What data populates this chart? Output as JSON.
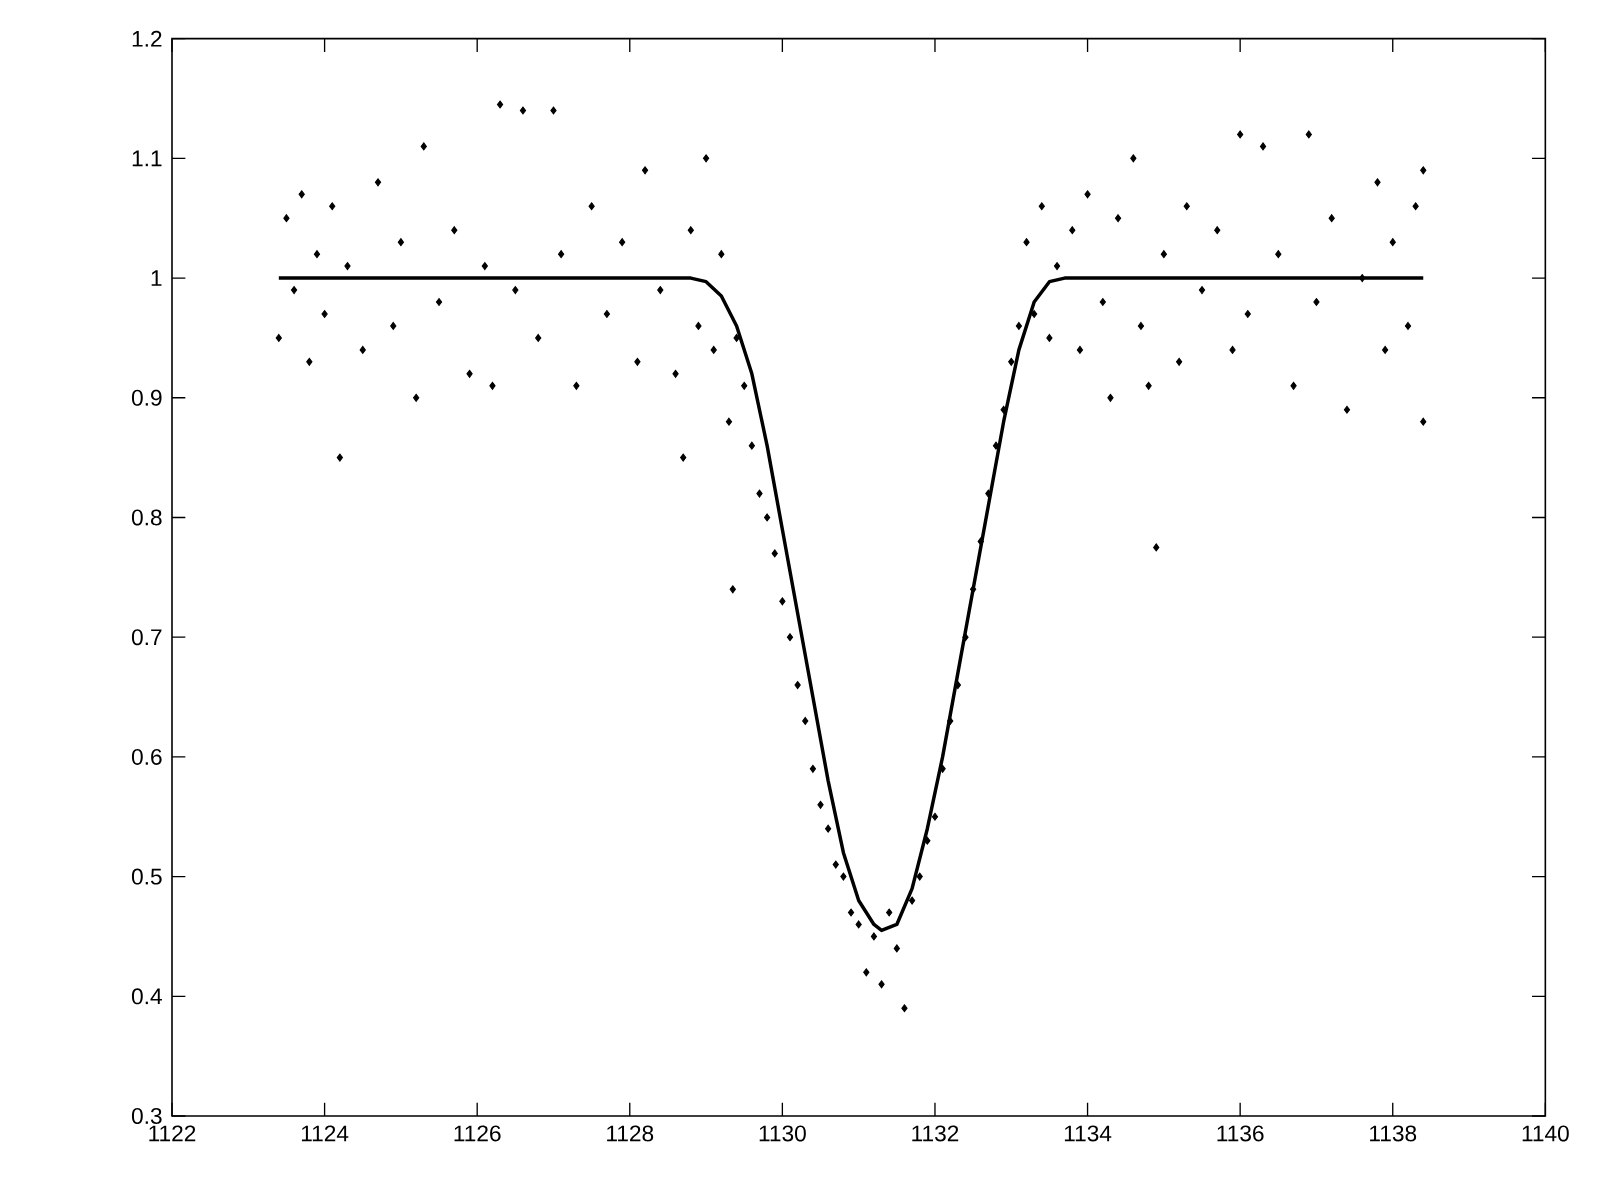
{
  "chart_data": {
    "type": "scatter",
    "xlim": [
      1122,
      1140
    ],
    "ylim": [
      0.3,
      1.2
    ],
    "xticks": [
      1122,
      1124,
      1126,
      1128,
      1130,
      1132,
      1134,
      1136,
      1138,
      1140
    ],
    "yticks": [
      0.3,
      0.4,
      0.5,
      0.6,
      0.7,
      0.8,
      0.9,
      1,
      1.1,
      1.2
    ],
    "series": [
      {
        "marker": "diamond",
        "color": "#000000",
        "x": [
          1123.4,
          1123.5,
          1123.6,
          1123.7,
          1123.8,
          1123.9,
          1124.0,
          1124.1,
          1124.2,
          1124.3,
          1124.5,
          1124.7,
          1124.9,
          1125.0,
          1125.2,
          1125.3,
          1125.5,
          1125.7,
          1125.9,
          1126.1,
          1126.2,
          1126.3,
          1126.5,
          1126.6,
          1126.8,
          1127.0,
          1127.1,
          1127.3,
          1127.5,
          1127.7,
          1127.9,
          1128.1,
          1128.2,
          1128.4,
          1128.6,
          1128.7,
          1128.8,
          1128.9,
          1129.0,
          1129.1,
          1129.2,
          1129.3,
          1129.35,
          1129.4,
          1129.5,
          1129.6,
          1129.7,
          1129.8,
          1129.9,
          1130.0,
          1130.1,
          1130.2,
          1130.3,
          1130.4,
          1130.5,
          1130.6,
          1130.7,
          1130.8,
          1130.9,
          1131.0,
          1131.1,
          1131.2,
          1131.3,
          1131.4,
          1131.5,
          1131.6,
          1131.7,
          1131.8,
          1131.9,
          1132.0,
          1132.1,
          1132.2,
          1132.3,
          1132.4,
          1132.5,
          1132.6,
          1132.7,
          1132.8,
          1132.9,
          1133.0,
          1133.1,
          1133.2,
          1133.3,
          1133.4,
          1133.5,
          1133.6,
          1133.8,
          1133.9,
          1134.0,
          1134.2,
          1134.3,
          1134.4,
          1134.6,
          1134.7,
          1134.8,
          1134.9,
          1135.0,
          1135.2,
          1135.3,
          1135.5,
          1135.7,
          1135.9,
          1136.0,
          1136.1,
          1136.3,
          1136.5,
          1136.7,
          1136.9,
          1137.0,
          1137.2,
          1137.4,
          1137.6,
          1137.8,
          1137.9,
          1138.0,
          1138.2,
          1138.3,
          1138.4,
          1138.4
        ],
        "values": [
          0.95,
          1.05,
          0.99,
          1.07,
          0.93,
          1.02,
          0.97,
          1.06,
          0.85,
          1.01,
          0.94,
          1.08,
          0.96,
          1.03,
          0.9,
          1.11,
          0.98,
          1.04,
          0.92,
          1.01,
          0.91,
          1.145,
          0.99,
          1.14,
          0.95,
          1.14,
          1.02,
          0.91,
          1.06,
          0.97,
          1.03,
          0.93,
          1.09,
          0.99,
          0.92,
          0.85,
          1.04,
          0.96,
          1.1,
          0.94,
          1.02,
          0.88,
          0.74,
          0.95,
          0.91,
          0.86,
          0.82,
          0.8,
          0.77,
          0.73,
          0.7,
          0.66,
          0.63,
          0.59,
          0.56,
          0.54,
          0.51,
          0.5,
          0.47,
          0.46,
          0.42,
          0.45,
          0.41,
          0.47,
          0.44,
          0.39,
          0.48,
          0.5,
          0.53,
          0.55,
          0.59,
          0.63,
          0.66,
          0.7,
          0.74,
          0.78,
          0.82,
          0.86,
          0.89,
          0.93,
          0.96,
          1.03,
          0.97,
          1.06,
          0.95,
          1.01,
          1.04,
          0.94,
          1.07,
          0.98,
          0.9,
          1.05,
          1.1,
          0.96,
          0.91,
          0.775,
          1.02,
          0.93,
          1.06,
          0.99,
          1.04,
          0.94,
          1.12,
          0.97,
          1.11,
          1.02,
          0.91,
          1.12,
          0.98,
          1.05,
          0.89,
          1.0,
          1.08,
          0.94,
          1.03,
          0.96,
          1.06,
          0.88,
          1.09
        ]
      },
      {
        "type": "line",
        "marker": "none",
        "line_style": "solid",
        "color": "#000000",
        "x": [
          1123.4,
          1128.8,
          1129.0,
          1129.2,
          1129.4,
          1129.6,
          1129.8,
          1130.0,
          1130.2,
          1130.4,
          1130.6,
          1130.8,
          1131.0,
          1131.2,
          1131.3,
          1131.5,
          1131.7,
          1131.9,
          1132.1,
          1132.3,
          1132.5,
          1132.7,
          1132.9,
          1133.1,
          1133.3,
          1133.5,
          1133.7,
          1138.4
        ],
        "values": [
          1.0,
          1.0,
          0.997,
          0.985,
          0.96,
          0.92,
          0.86,
          0.79,
          0.72,
          0.65,
          0.58,
          0.52,
          0.48,
          0.46,
          0.455,
          0.46,
          0.49,
          0.54,
          0.6,
          0.67,
          0.74,
          0.81,
          0.88,
          0.94,
          0.98,
          0.997,
          1.0,
          1.0
        ]
      }
    ]
  }
}
